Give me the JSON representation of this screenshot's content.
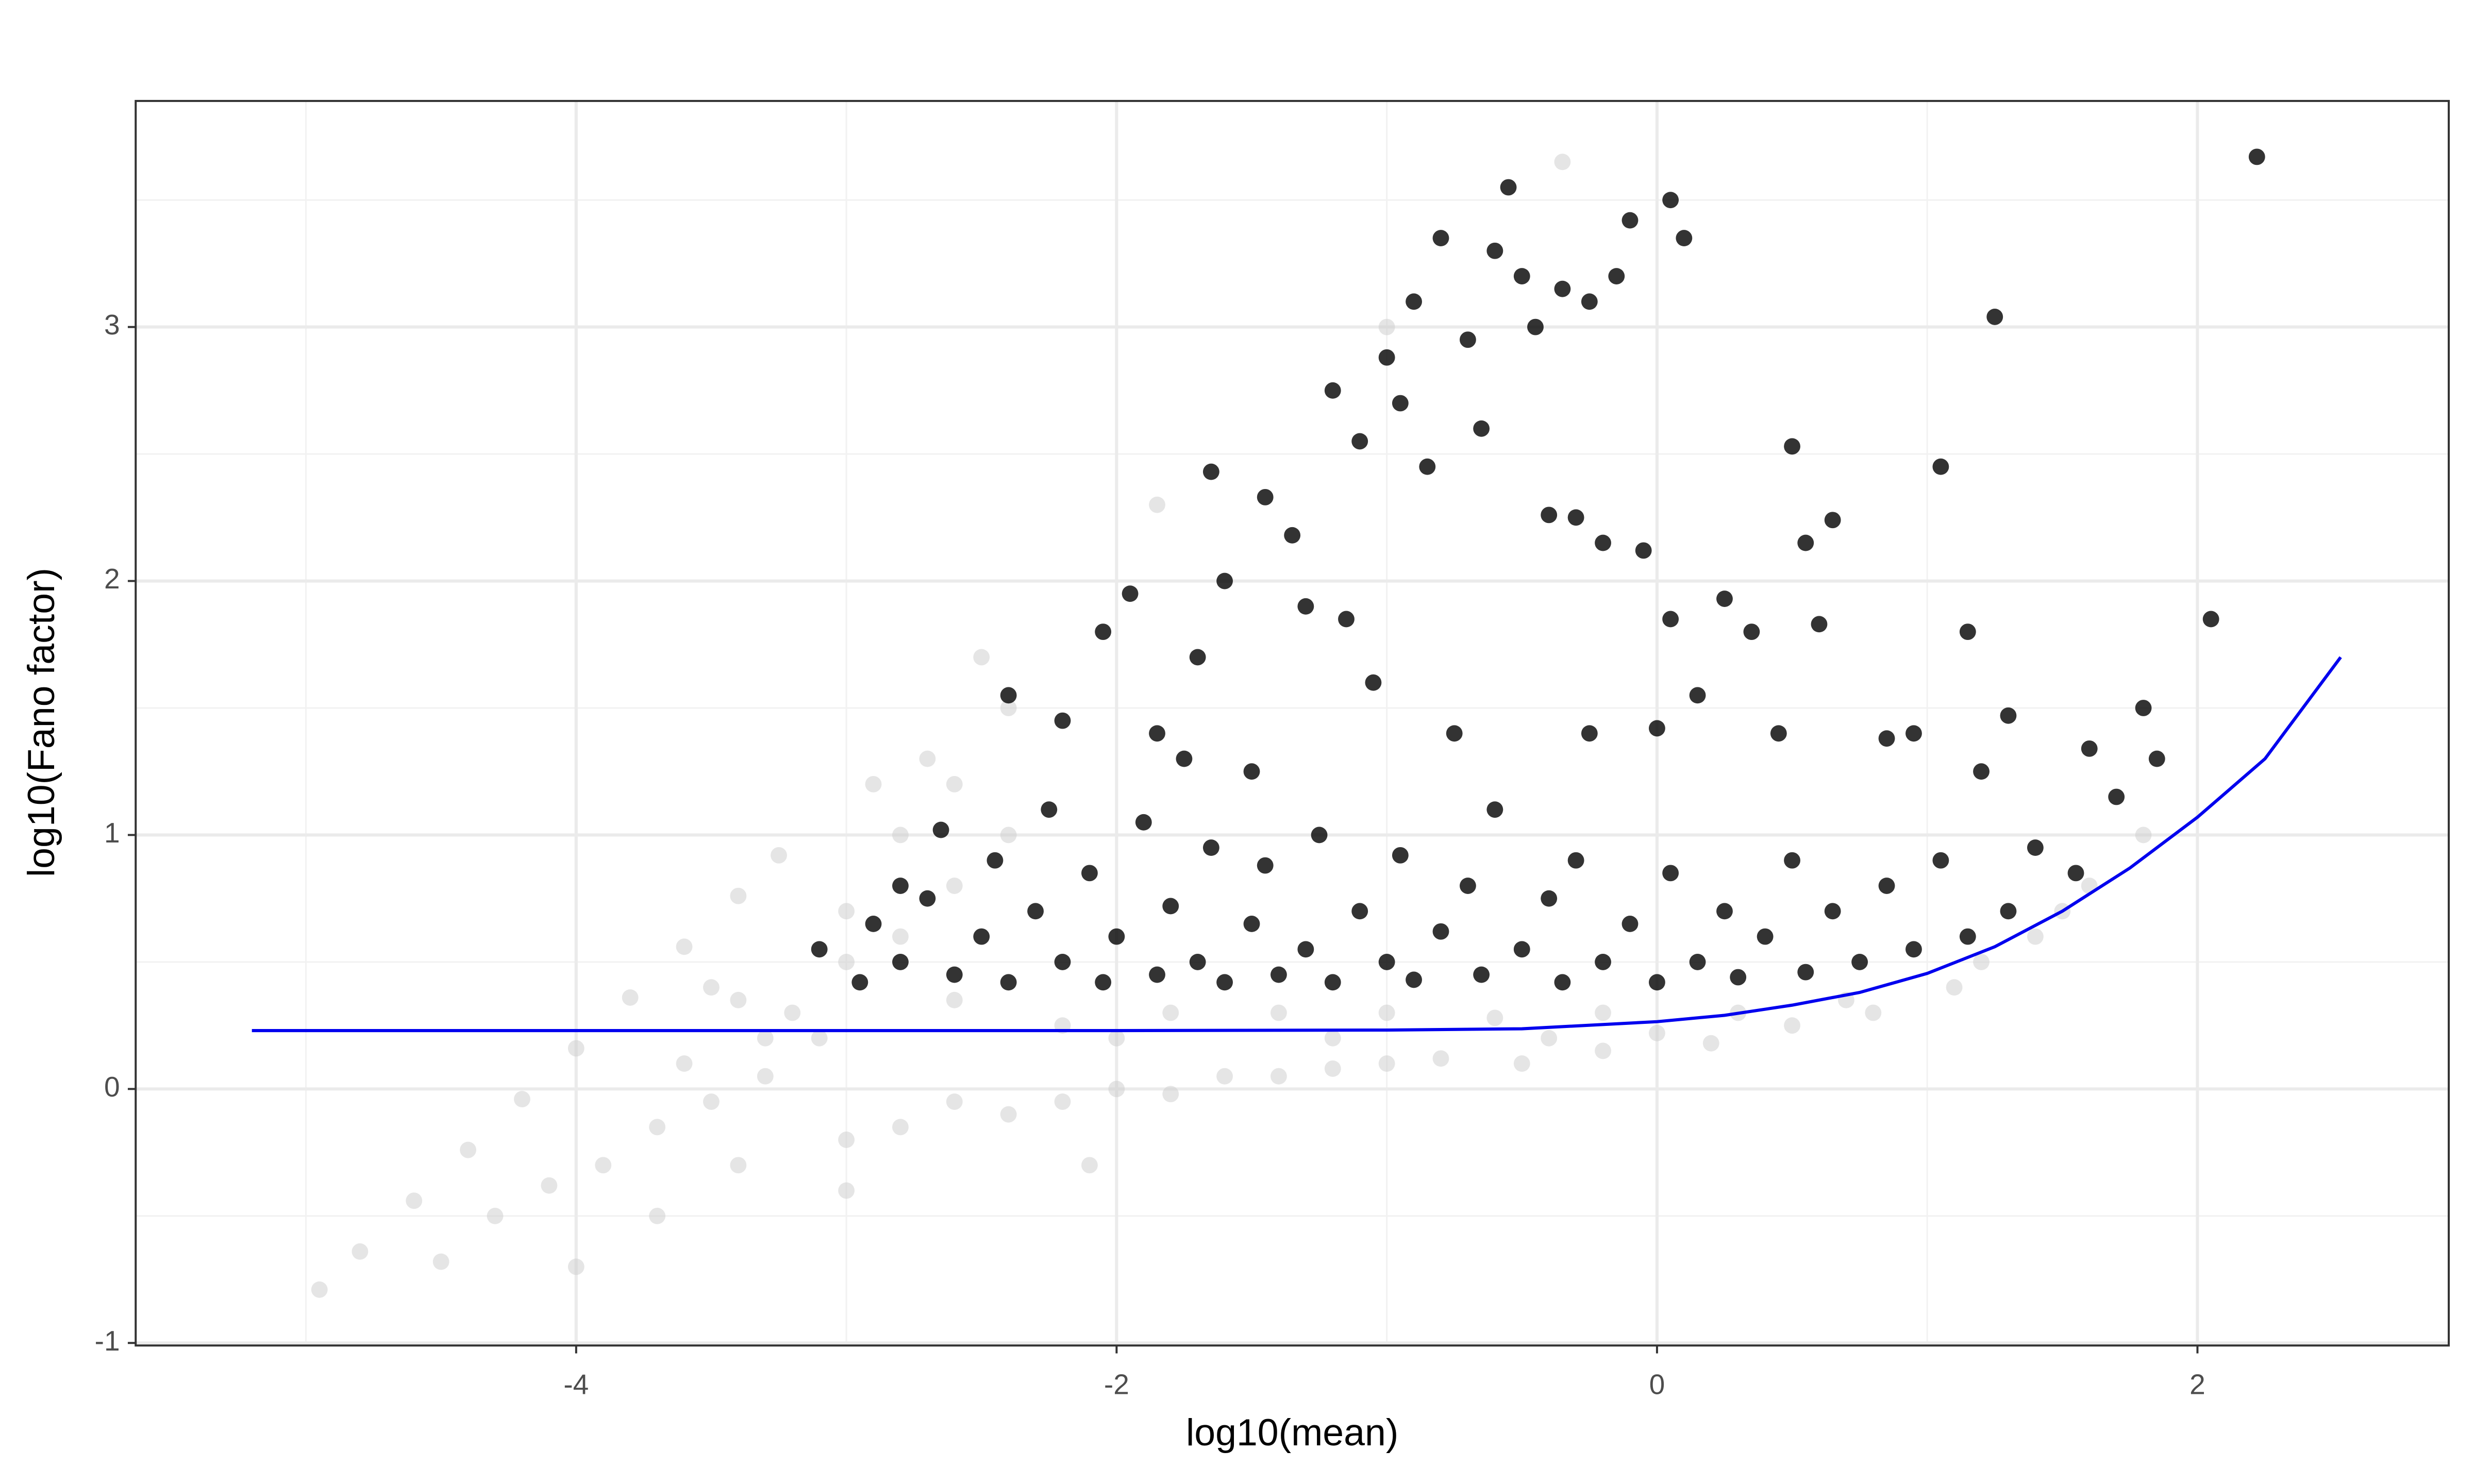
{
  "chart_data": {
    "type": "scatter",
    "x_label": "log10(mean)",
    "y_label": "log10(Fano factor)",
    "xlim": [
      -5.63,
      2.93
    ],
    "ylim": [
      -1.01,
      3.89
    ],
    "xticks": [
      -4,
      -2,
      0,
      2
    ],
    "yticks": [
      -1,
      0,
      1,
      2,
      3
    ],
    "grid": true,
    "series": [
      {
        "color": "#cccccc",
        "opacity": 0.5,
        "x": [
          -4.95,
          -4.8,
          -4.6,
          -4.4,
          -4.2,
          -4.0,
          -3.8,
          -3.6,
          -3.4,
          -3.25,
          -4.5,
          -4.3,
          -4.1,
          -4.0,
          -3.9,
          -3.7,
          -3.5,
          -3.3,
          -3.7,
          -3.4,
          -3.0,
          -2.8,
          -2.6,
          -2.4,
          -2.2,
          -2.0,
          -1.8,
          -1.6,
          -1.4,
          -1.2,
          -1.0,
          -0.8,
          -0.5,
          -0.2,
          0.2,
          0.5,
          0.8,
          1.1,
          1.4,
          1.6,
          1.8,
          -3.2,
          -3.0,
          -2.8,
          -2.6,
          -2.4,
          -2.6,
          -2.4,
          -2.5,
          -2.8,
          -3.0,
          -2.2,
          -1.8,
          -1.4,
          -1.0,
          -0.6,
          -0.2,
          0.3,
          0.7,
          1.2,
          1.5,
          -3.6,
          -3.4,
          -3.1,
          -2.0,
          -1.2,
          -0.4,
          0.0,
          -2.6,
          -3.5,
          -1.85,
          -1.0,
          -0.35,
          -2.9,
          -2.7,
          -3.3,
          -2.1,
          -3.0
        ],
        "values": [
          -0.79,
          -0.64,
          -0.44,
          -0.24,
          -0.04,
          0.16,
          0.36,
          0.56,
          0.76,
          0.92,
          -0.68,
          -0.5,
          -0.38,
          -0.7,
          -0.3,
          -0.15,
          -0.05,
          0.05,
          -0.5,
          -0.3,
          -0.2,
          -0.15,
          -0.05,
          -0.1,
          -0.05,
          0.0,
          -0.02,
          0.05,
          0.05,
          0.08,
          0.1,
          0.12,
          0.1,
          0.15,
          0.18,
          0.25,
          0.3,
          0.4,
          0.6,
          0.8,
          1.0,
          0.3,
          0.5,
          0.6,
          0.8,
          1.0,
          1.2,
          1.5,
          1.7,
          1.0,
          0.7,
          0.25,
          0.3,
          0.3,
          0.3,
          0.28,
          0.3,
          0.3,
          0.35,
          0.5,
          0.7,
          0.1,
          0.35,
          0.2,
          0.2,
          0.2,
          0.2,
          0.22,
          0.35,
          0.4,
          2.3,
          3.0,
          3.65,
          1.2,
          1.3,
          0.2,
          -0.3,
          -0.4
        ]
      },
      {
        "color": "#000000",
        "opacity": 0.8,
        "x": [
          -3.1,
          -2.95,
          -2.9,
          -2.8,
          -2.7,
          -2.65,
          -2.6,
          -2.5,
          -2.45,
          -2.4,
          -2.3,
          -2.25,
          -2.2,
          -2.1,
          -2.05,
          -2.0,
          -1.9,
          -1.85,
          -1.8,
          -1.7,
          -1.65,
          -1.6,
          -1.5,
          -1.45,
          -1.4,
          -1.3,
          -1.25,
          -1.2,
          -1.1,
          -1.0,
          -0.95,
          -0.9,
          -0.8,
          -0.7,
          -0.65,
          -0.6,
          -0.5,
          -0.4,
          -0.35,
          -0.3,
          -0.2,
          -0.1,
          0.0,
          0.05,
          0.15,
          0.25,
          0.3,
          0.4,
          0.5,
          0.55,
          0.65,
          0.75,
          0.85,
          0.95,
          1.05,
          1.15,
          1.3,
          1.4,
          1.55,
          1.7,
          1.85,
          -2.4,
          -2.2,
          -2.05,
          -1.95,
          -1.85,
          -1.7,
          -1.6,
          -1.65,
          -1.5,
          -1.45,
          -1.35,
          -1.3,
          -1.15,
          -1.2,
          -1.1,
          -1.05,
          -1.0,
          -0.95,
          -0.9,
          -0.85,
          -0.8,
          -0.7,
          -0.65,
          -0.6,
          -0.55,
          -0.5,
          -0.45,
          -0.4,
          -0.35,
          -0.3,
          -0.25,
          -0.2,
          -0.15,
          -0.1,
          -0.05,
          0.0,
          0.05,
          0.1,
          0.05,
          0.15,
          0.25,
          0.35,
          0.45,
          0.5,
          0.55,
          0.6,
          0.65,
          0.85,
          0.95,
          1.05,
          1.2,
          1.25,
          1.15,
          1.3,
          1.6,
          1.8,
          2.05,
          2.22,
          -2.8,
          -1.75,
          -0.75,
          -0.25
        ],
        "values": [
          0.55,
          0.42,
          0.65,
          0.5,
          0.75,
          1.02,
          0.45,
          0.6,
          0.9,
          0.42,
          0.7,
          1.1,
          0.5,
          0.85,
          0.42,
          0.6,
          1.05,
          0.45,
          0.72,
          0.5,
          0.95,
          0.42,
          0.65,
          0.88,
          0.45,
          0.55,
          1.0,
          0.42,
          0.7,
          0.5,
          0.92,
          0.43,
          0.62,
          0.8,
          0.45,
          1.1,
          0.55,
          0.75,
          0.42,
          0.9,
          0.5,
          0.65,
          0.42,
          0.85,
          0.5,
          0.7,
          0.44,
          0.6,
          0.9,
          0.46,
          0.7,
          0.5,
          0.8,
          0.55,
          0.9,
          0.6,
          0.7,
          0.95,
          0.85,
          1.15,
          1.3,
          1.55,
          1.45,
          1.8,
          1.95,
          1.4,
          1.7,
          2.0,
          2.43,
          1.25,
          2.33,
          2.18,
          1.9,
          1.85,
          2.75,
          2.55,
          1.6,
          2.88,
          2.7,
          3.1,
          2.45,
          3.35,
          2.95,
          2.6,
          3.3,
          3.55,
          3.2,
          3.0,
          2.26,
          3.15,
          2.25,
          3.1,
          2.15,
          3.2,
          3.42,
          2.12,
          1.42,
          3.5,
          3.35,
          1.85,
          1.55,
          1.93,
          1.8,
          1.4,
          2.53,
          2.15,
          1.83,
          2.24,
          1.38,
          1.4,
          2.45,
          1.25,
          3.04,
          1.8,
          1.47,
          1.34,
          1.5,
          1.85,
          3.67,
          0.8,
          1.3,
          1.4,
          1.4
        ]
      }
    ],
    "trend_line": {
      "color": "#0000ee",
      "x": [
        -5.2,
        -4,
        -3,
        -2,
        -1,
        -0.5,
        0,
        0.25,
        0.5,
        0.75,
        1,
        1.25,
        1.5,
        1.75,
        2,
        2.25,
        2.53
      ],
      "values": [
        0.23,
        0.23,
        0.23,
        0.23,
        0.232,
        0.237,
        0.265,
        0.29,
        0.33,
        0.38,
        0.455,
        0.56,
        0.7,
        0.87,
        1.07,
        1.3,
        1.7
      ]
    }
  }
}
